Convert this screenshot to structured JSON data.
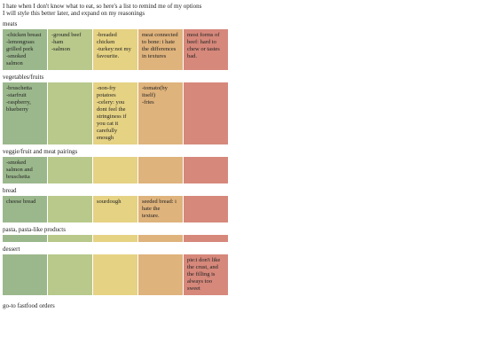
{
  "intro": [
    "I hate when I don't know what to eat, so here's a list to remind me of my options",
    "I will style this better later, and expand on my reasonings"
  ],
  "sections": [
    {
      "title": "meats",
      "cells": [
        [
          "-chicken breast",
          "-lemongrass",
          "grilled pork",
          "-smoked",
          "salmon"
        ],
        [
          "-ground beef",
          "-ham",
          "-salmon"
        ],
        [
          "-breaded",
          "chicken",
          "-turkey:not my",
          "favourite."
        ],
        [
          "meat connected",
          "to bone: i hate",
          "the differences",
          "in textures"
        ],
        [
          "most forms of",
          "beef: hard to",
          "chew or tastes",
          "bad."
        ]
      ]
    },
    {
      "title": "vegetables/fruits",
      "cells": [
        [
          "-bruschetta",
          "-starfruit",
          "-raspberry,",
          "blueberry"
        ],
        null,
        [
          "-non-fry",
          "potatoes",
          "-celery: you",
          "dont feel the",
          "stringiness if",
          "you cat it",
          "carefully",
          "enough"
        ],
        [
          "-tomato(by",
          "itself)",
          "-fries"
        ],
        null
      ]
    },
    {
      "title": "veggie/fruit and meat pairings",
      "cells": [
        [
          "-smoked",
          "salmon and",
          "bruschetta"
        ],
        null,
        null,
        null,
        null
      ]
    },
    {
      "title": "bread",
      "cells": [
        [
          "cheese bread"
        ],
        null,
        [
          "sourdough"
        ],
        [
          "seeded bread: i",
          "hate the",
          "texture."
        ],
        null
      ]
    },
    {
      "title": "pasta, pasta-like products",
      "cells": [
        null,
        null,
        null,
        null,
        null
      ]
    },
    {
      "title": "dessert",
      "cells": [
        null,
        null,
        null,
        null,
        [
          "pie:i don't like",
          "the crust, and",
          "the filling is",
          "always too",
          "sweet"
        ]
      ]
    }
  ],
  "closing_heading": "go-to fastfood orders"
}
